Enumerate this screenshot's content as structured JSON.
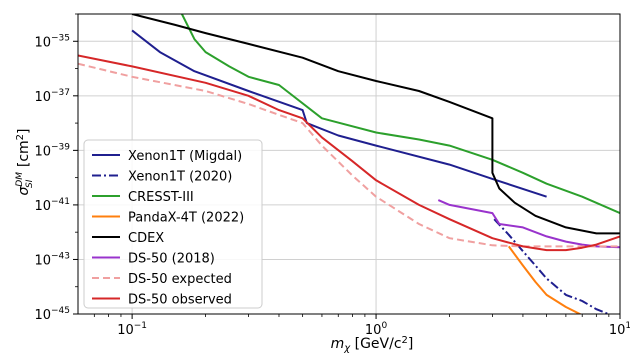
{
  "chart_data": {
    "type": "line",
    "title": "",
    "xlabel": {
      "prefix": "m",
      "sub": "χ",
      "unit_open": " [GeV/c",
      "unit_sup": "2",
      "unit_close": "]"
    },
    "ylabel": {
      "prefix": "σ",
      "sup": "DM",
      "sub": "SI",
      "unit_open": "[cm",
      "unit_sup": "2",
      "unit_close": "]"
    },
    "x_scale": "log",
    "y_scale": "log",
    "xlim": [
      0.06,
      10
    ],
    "ylim": [
      1e-45,
      1e-34
    ],
    "grid": true,
    "legend_position": "lower-left",
    "x_ticks": [
      {
        "value": 0.1,
        "base": "10",
        "exp": "−1"
      },
      {
        "value": 1,
        "base": "10",
        "exp": "0"
      },
      {
        "value": 10,
        "base": "10",
        "exp": "1"
      }
    ],
    "y_ticks": [
      {
        "value": 1e-35,
        "base": "10",
        "exp": "−35"
      },
      {
        "value": 1e-37,
        "base": "10",
        "exp": "−37"
      },
      {
        "value": 1e-39,
        "base": "10",
        "exp": "−39"
      },
      {
        "value": 1e-41,
        "base": "10",
        "exp": "−41"
      },
      {
        "value": 1e-43,
        "base": "10",
        "exp": "−43"
      },
      {
        "value": 1e-45,
        "base": "10",
        "exp": "−45"
      }
    ],
    "series": [
      {
        "name": "Xenon1T (Migdal)",
        "color": "#1f1f8f",
        "dash": "solid",
        "x": [
          0.1,
          0.13,
          0.18,
          0.3,
          0.5,
          0.52,
          0.7,
          1.0,
          2.0,
          3.0,
          5.0
        ],
        "y": [
          2.5e-35,
          4e-36,
          8e-37,
          1.5e-37,
          3e-38,
          1e-38,
          3.5e-39,
          1.5e-39,
          3e-40,
          9e-41,
          2e-41
        ]
      },
      {
        "name": "Xenon1T (2020)",
        "color": "#1f1f8f",
        "dash": "dashdot",
        "x": [
          3.05,
          3.5,
          4.0,
          4.5,
          5.0,
          6.0,
          7.0,
          8.0,
          9.5
        ],
        "y": [
          3e-42,
          8e-43,
          2e-43,
          6e-44,
          2e-44,
          5e-45,
          3e-45,
          1.5e-45,
          8e-46
        ]
      },
      {
        "name": "CRESST-III",
        "color": "#2ca02c",
        "dash": "solid",
        "x": [
          0.16,
          0.18,
          0.2,
          0.25,
          0.3,
          0.4,
          0.6,
          1.0,
          1.5,
          2.0,
          3.0,
          4.0,
          5.0,
          7.0,
          10.0
        ],
        "y": [
          1e-34,
          1.2e-35,
          4e-36,
          1.2e-36,
          5e-37,
          2.5e-37,
          1.5e-38,
          4.5e-39,
          2.5e-39,
          1.5e-39,
          4.5e-40,
          1.5e-40,
          6e-41,
          2e-41,
          5e-42
        ]
      },
      {
        "name": "PandaX-4T (2022)",
        "color": "#ff7f0e",
        "dash": "solid",
        "x": [
          3.5,
          4.0,
          4.5,
          5.0,
          6.0,
          7.0,
          8.0,
          9.0
        ],
        "y": [
          3e-43,
          6e-44,
          1.5e-44,
          5e-45,
          1.8e-45,
          9e-46,
          6e-46,
          5e-46
        ]
      },
      {
        "name": "CDEX",
        "color": "#000000",
        "dash": "solid",
        "x": [
          0.1,
          0.15,
          0.2,
          0.3,
          0.5,
          0.7,
          1.0,
          1.5,
          2.0,
          3.0,
          3.0,
          3.2,
          3.7,
          4.5,
          6.0,
          8.0,
          10.0
        ],
        "y": [
          1e-34,
          4e-35,
          2e-35,
          8e-36,
          2.5e-36,
          8e-37,
          3.5e-37,
          1.5e-37,
          6e-38,
          1.5e-38,
          1.5e-40,
          4e-41,
          1.2e-41,
          4e-42,
          1.5e-42,
          9e-43,
          9e-43
        ]
      },
      {
        "name": "DS-50 (2018)",
        "color": "#9933cc",
        "dash": "solid",
        "x": [
          1.8,
          2.0,
          3.0,
          3.2,
          4.0,
          5.0,
          6.0,
          7.0,
          8.0,
          10.0
        ],
        "y": [
          1.5e-41,
          1e-41,
          5e-42,
          2e-42,
          1.5e-42,
          7e-43,
          4.5e-43,
          3.5e-43,
          3e-43,
          2.8e-43
        ]
      },
      {
        "name": "DS-50 expected",
        "color": "#f0a0a0",
        "dash": "dashed",
        "x": [
          0.06,
          0.1,
          0.2,
          0.3,
          0.4,
          0.5,
          0.6,
          0.8,
          1.0,
          1.5,
          2.0,
          3.0,
          4.0,
          5.0,
          6.0,
          8.0,
          10.0
        ],
        "y": [
          1.5e-36,
          5e-37,
          1.5e-37,
          5e-38,
          2e-38,
          1e-38,
          1.5e-39,
          1.2e-40,
          2e-41,
          2e-42,
          6e-43,
          3.3e-43,
          3e-43,
          3e-43,
          3e-43,
          3e-43,
          3e-43
        ]
      },
      {
        "name": "DS-50 observed",
        "color": "#d62728",
        "dash": "solid",
        "x": [
          0.06,
          0.1,
          0.2,
          0.3,
          0.4,
          0.5,
          0.6,
          0.8,
          1.0,
          1.5,
          2.0,
          3.0,
          4.0,
          5.0,
          6.0,
          7.0,
          8.0,
          10.0
        ],
        "y": [
          3e-36,
          1.2e-36,
          3e-37,
          1e-37,
          3e-38,
          1.5e-38,
          3e-39,
          4e-40,
          8e-41,
          1e-41,
          3e-42,
          6e-43,
          3e-43,
          2.2e-43,
          2.2e-43,
          2.7e-43,
          3.5e-43,
          7e-43
        ]
      }
    ]
  }
}
